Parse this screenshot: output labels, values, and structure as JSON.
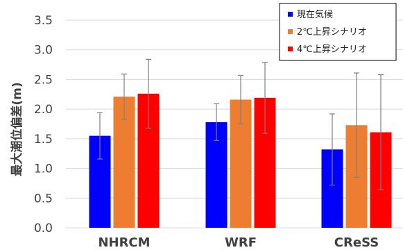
{
  "chart_data": {
    "type": "bar",
    "categories": [
      "NHRCM",
      "WRF",
      "CReSS"
    ],
    "series": [
      {
        "name": "現在気候",
        "color": "#0000ff",
        "values": [
          1.55,
          1.78,
          1.32
        ],
        "error": [
          0.39,
          0.31,
          0.6
        ]
      },
      {
        "name": "2℃上昇シナリオ",
        "color": "#ed7d31",
        "values": [
          2.21,
          2.16,
          1.73
        ],
        "error": [
          0.38,
          0.41,
          0.88
        ]
      },
      {
        "name": "4℃上昇シナリオ",
        "color": "#ff0000",
        "values": [
          2.26,
          2.19,
          1.61
        ],
        "error": [
          0.58,
          0.6,
          0.97
        ]
      }
    ],
    "ylabel": "最大潮位偏差(m)",
    "ylim": [
      0,
      3.5
    ],
    "yticks": [
      "0.0",
      "0.5",
      "1.0",
      "1.5",
      "2.0",
      "2.5",
      "3.0",
      "3.5"
    ],
    "grid": true,
    "legend": "top-right"
  }
}
